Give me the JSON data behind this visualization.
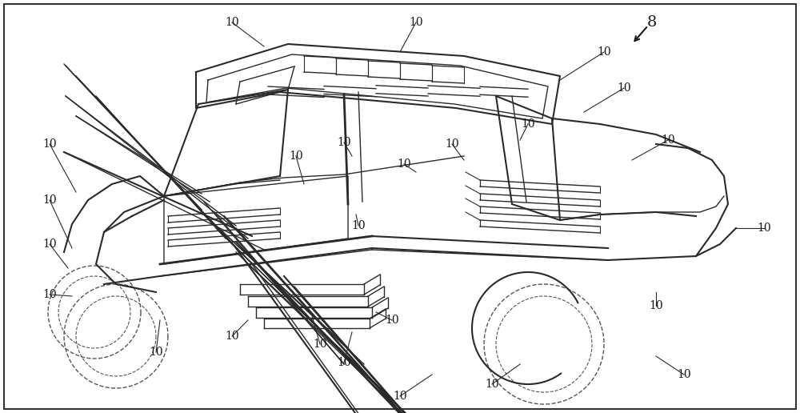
{
  "background_color": "#ffffff",
  "line_color": "#2a2a2a",
  "dashed_color": "#555555",
  "label_color": "#1a1a1a",
  "ref_number": "8",
  "beam_label": "10",
  "fig_width": 10.0,
  "fig_height": 5.16,
  "dpi": 100,
  "border_color": "#333333"
}
